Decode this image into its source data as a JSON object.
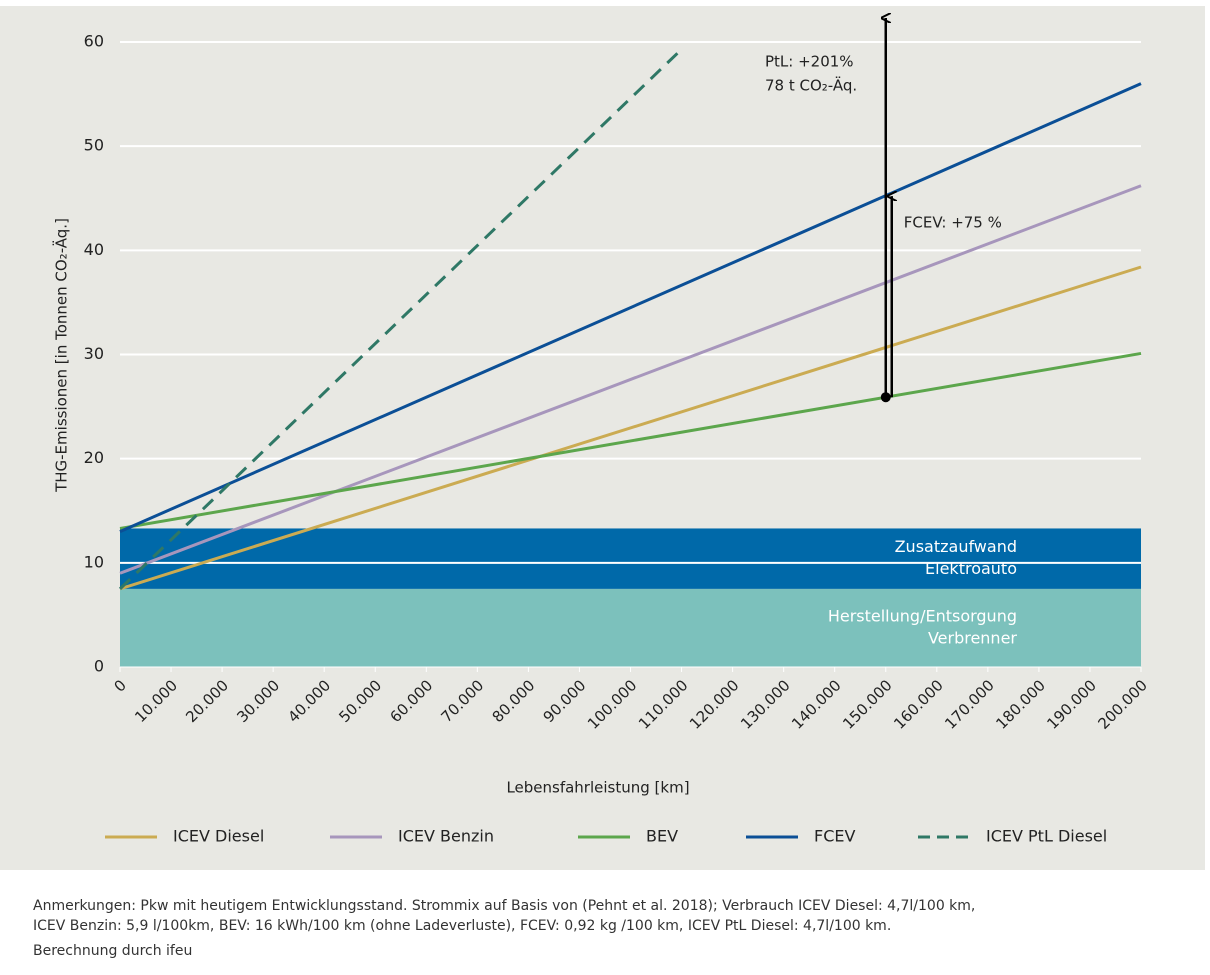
{
  "chart_data": {
    "type": "line",
    "ylabel": "THG-Emissionen [in Tonnen CO₂-Äq.]",
    "xlabel": "Lebensfahrleistung [km]",
    "xlim": [
      0,
      200000
    ],
    "ylim": [
      0,
      60
    ],
    "xticks": [
      0,
      {
        "value": 10000,
        "label": "10.000"
      },
      {
        "value": 20000,
        "label": "20.000"
      },
      {
        "value": 30000,
        "label": "30.000"
      },
      {
        "value": 40000,
        "label": "40.000"
      },
      {
        "value": 50000,
        "label": "50.000"
      },
      {
        "value": 60000,
        "label": "60.000"
      },
      {
        "value": 70000,
        "label": "70.000"
      },
      {
        "value": 80000,
        "label": "80.000"
      },
      {
        "value": 90000,
        "label": "90.000"
      },
      {
        "value": 100000,
        "label": "100.000"
      },
      {
        "value": 110000,
        "label": "110.000"
      },
      {
        "value": 120000,
        "label": "120.000"
      },
      {
        "value": 130000,
        "label": "130.000"
      },
      {
        "value": 140000,
        "label": "140.000"
      },
      {
        "value": 150000,
        "label": "150.000"
      },
      {
        "value": 160000,
        "label": "160.000"
      },
      {
        "value": 170000,
        "label": "170.000"
      },
      {
        "value": 180000,
        "label": "180.000"
      },
      {
        "value": 190000,
        "label": "190.000"
      },
      {
        "value": 200000,
        "label": "200.000"
      }
    ],
    "yticks": [
      0,
      10,
      20,
      30,
      40,
      50,
      60
    ],
    "grid": true,
    "bands": [
      {
        "label_lines": [
          "Herstellung/Entsorgung",
          "Verbrenner"
        ],
        "value": 7.5,
        "color": "#7cc1bc"
      },
      {
        "label_lines": [
          "Zusatzaufwand",
          "Elektroauto"
        ],
        "value": 5.8,
        "color": "#0069a9"
      }
    ],
    "series": [
      {
        "name": "ICEV Diesel",
        "color": "#cbab52",
        "x": [
          0,
          200000
        ],
        "values": [
          7.5,
          38.4
        ]
      },
      {
        "name": "ICEV Benzin",
        "color": "#a796bc",
        "x": [
          0,
          200000
        ],
        "values": [
          9,
          46.2
        ]
      },
      {
        "name": "BEV",
        "color": "#5ca64c",
        "x": [
          0,
          200000
        ],
        "values": [
          13.3,
          30.1
        ]
      },
      {
        "name": "FCEV",
        "color": "#0b4f96",
        "x": [
          0,
          200000
        ],
        "values": [
          13,
          56
        ]
      },
      {
        "name": "ICEV PtL Diesel",
        "color": "#2f7866",
        "dashed": true,
        "x": [
          0,
          110000
        ],
        "values": [
          7.5,
          59.3
        ]
      }
    ],
    "annotations": [
      {
        "text_lines": [
          "PtL: +201%",
          "78 t CO₂-Äq."
        ],
        "x": 150000,
        "y_from": 25.9,
        "y_to": 62.3
      },
      {
        "text_lines": [
          "FCEV: +75 %"
        ],
        "x": 150000,
        "y_from": 25.9,
        "y_to": 45.2
      }
    ],
    "notes": [
      "Anmerkungen: Pkw mit heutigem Entwicklungsstand. Strommix auf Basis von (Pehnt et al. 2018); Verbrauch ICEV Diesel: 4,7l/100 km,",
      "ICEV Benzin: 5,9 l/100km, BEV: 16 kWh/100 km (ohne Ladeverluste), FCEV: 0,92 kg /100 km, ICEV PtL Diesel: 4,7l/100 km.",
      "Berechnung durch ifeu"
    ]
  }
}
